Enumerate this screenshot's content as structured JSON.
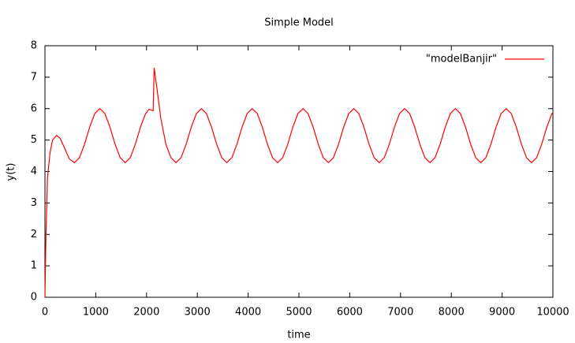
{
  "chart_data": {
    "type": "line",
    "title": "Simple Model",
    "x_label": "time",
    "y_label": "y(t)",
    "xlim": [
      0,
      10000
    ],
    "ylim": [
      0,
      8
    ],
    "xticks": [
      0,
      1000,
      2000,
      3000,
      4000,
      5000,
      6000,
      7000,
      8000,
      9000,
      10000
    ],
    "yticks": [
      0,
      1,
      2,
      3,
      4,
      5,
      6,
      7,
      8
    ],
    "grid": false,
    "legend": "top-right",
    "x": [
      0,
      20,
      50,
      100,
      150,
      230,
      300,
      400,
      480,
      580,
      680,
      780,
      880,
      980,
      1080,
      1180,
      1280,
      1380,
      1480,
      1580,
      1680,
      1780,
      1880,
      1980,
      2050,
      2100,
      2130,
      2150,
      2200,
      2280,
      2380,
      2480,
      2580,
      2680,
      2780,
      2880,
      2980,
      3080,
      3180,
      3280,
      3380,
      3480,
      3580,
      3680,
      3780,
      3880,
      3980,
      4080,
      4180,
      4280,
      4380,
      4480,
      4580,
      4680,
      4780,
      4880,
      4980,
      5080,
      5180,
      5280,
      5380,
      5480,
      5580,
      5680,
      5780,
      5880,
      5980,
      6080,
      6180,
      6280,
      6380,
      6480,
      6580,
      6680,
      6780,
      6880,
      6980,
      7080,
      7180,
      7280,
      7380,
      7480,
      7580,
      7680,
      7780,
      7880,
      7980,
      8080,
      8180,
      8280,
      8380,
      8480,
      8580,
      8680,
      8780,
      8880,
      8980,
      9080,
      9180,
      9280,
      9380,
      9480,
      9580,
      9680,
      9780,
      9880,
      9980,
      10000
    ],
    "series": [
      {
        "name": "\"modelBanjir\"",
        "color": "#ff0000",
        "values": [
          0,
          2.0,
          3.8,
          4.6,
          5.0,
          5.15,
          5.05,
          4.7,
          4.4,
          4.28,
          4.44,
          4.87,
          5.41,
          5.84,
          6.0,
          5.84,
          5.41,
          4.87,
          4.44,
          4.28,
          4.44,
          4.87,
          5.41,
          5.84,
          5.98,
          5.95,
          5.93,
          7.3,
          6.7,
          5.7,
          4.87,
          4.44,
          4.28,
          4.44,
          4.87,
          5.41,
          5.84,
          6.0,
          5.84,
          5.41,
          4.87,
          4.44,
          4.28,
          4.44,
          4.87,
          5.41,
          5.84,
          6.0,
          5.84,
          5.41,
          4.87,
          4.44,
          4.28,
          4.44,
          4.87,
          5.41,
          5.84,
          6.0,
          5.84,
          5.41,
          4.87,
          4.44,
          4.28,
          4.44,
          4.87,
          5.41,
          5.84,
          6.0,
          5.84,
          5.41,
          4.87,
          4.44,
          4.28,
          4.44,
          4.87,
          5.41,
          5.84,
          6.0,
          5.84,
          5.41,
          4.87,
          4.44,
          4.28,
          4.44,
          4.87,
          5.41,
          5.84,
          6.0,
          5.84,
          5.41,
          4.87,
          4.44,
          4.28,
          4.44,
          4.87,
          5.41,
          5.84,
          6.0,
          5.84,
          5.41,
          4.87,
          4.44,
          4.28,
          4.44,
          4.87,
          5.41,
          5.84,
          5.88
        ]
      }
    ]
  }
}
